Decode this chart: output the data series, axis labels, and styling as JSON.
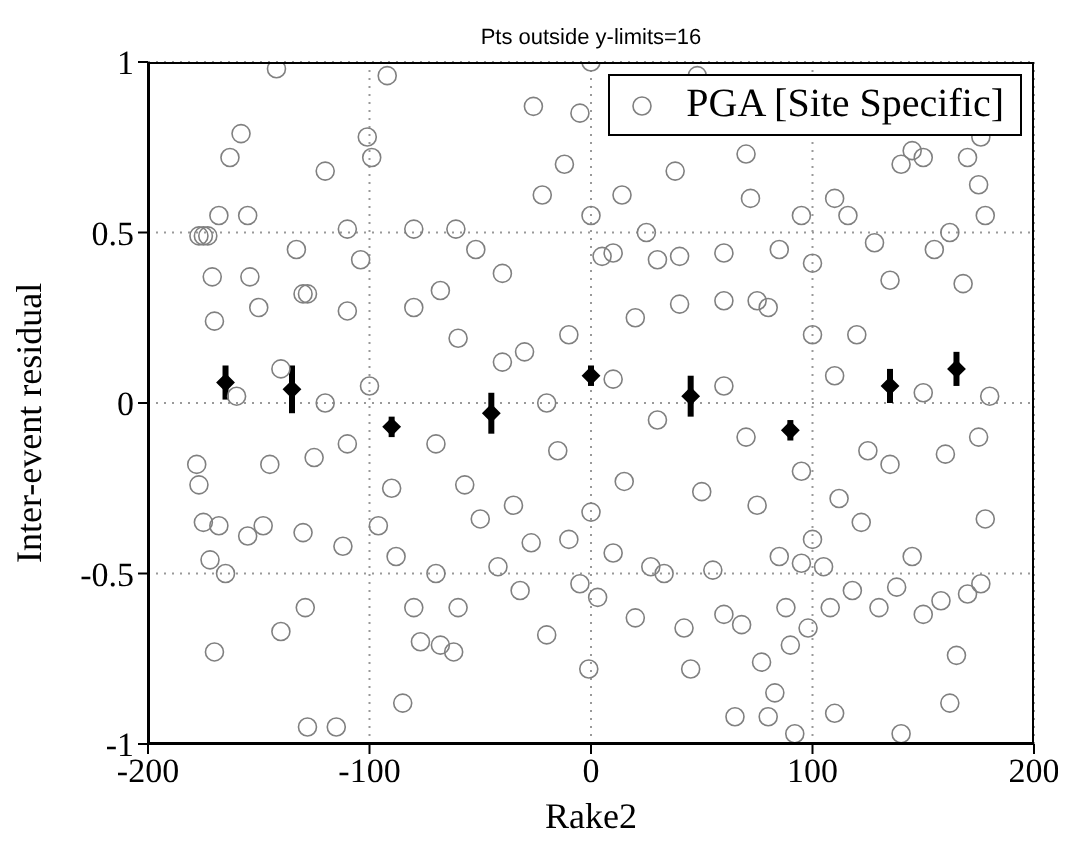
{
  "chart_data": {
    "type": "scatter",
    "title": "Pts outside y-limits=16",
    "xlabel": "Rake2",
    "ylabel": "Inter-event residual",
    "xlim": [
      -200,
      200
    ],
    "xticks": [
      -200,
      -100,
      0,
      100,
      200
    ],
    "ylim": [
      -1,
      1
    ],
    "yticks": [
      -1,
      -0.5,
      0,
      0.5,
      1
    ],
    "grid": true,
    "legend": "top right",
    "series": [
      {
        "name": "PGA [Site Specific]",
        "color": "#808080",
        "marker": "circle",
        "x": [
          -177,
          -175,
          -173,
          -168,
          -171,
          -163,
          -158,
          -155,
          -154,
          -142,
          -133,
          -128,
          -120,
          -110,
          -101,
          -99,
          -92,
          -104,
          -80,
          -68,
          -61,
          -52,
          -40,
          -26,
          -22,
          -12,
          -5,
          0,
          0,
          5,
          10,
          14,
          25,
          30,
          38,
          40,
          48,
          60,
          70,
          72,
          75,
          85,
          95,
          100,
          110,
          116,
          128,
          140,
          145,
          150,
          155,
          162,
          170,
          175,
          178,
          176,
          168,
          135,
          120,
          100,
          80,
          60,
          40,
          20,
          -10,
          -30,
          -60,
          -80,
          -110,
          -130,
          -150,
          -170,
          -178,
          -177,
          -175,
          -172,
          -168,
          -170,
          -165,
          -155,
          -148,
          -145,
          -140,
          -130,
          -129,
          -128,
          -125,
          -115,
          -112,
          -110,
          -96,
          -90,
          -88,
          -85,
          -80,
          -77,
          -70,
          -68,
          -62,
          -60,
          -57,
          -50,
          -42,
          -35,
          -32,
          -27,
          -20,
          -15,
          -10,
          -5,
          -1,
          0,
          3,
          10,
          15,
          20,
          27,
          33,
          42,
          45,
          50,
          55,
          60,
          65,
          68,
          75,
          77,
          80,
          83,
          85,
          88,
          90,
          92,
          95,
          98,
          100,
          105,
          108,
          110,
          112,
          118,
          122,
          130,
          135,
          138,
          140,
          145,
          150,
          158,
          162,
          165,
          170,
          176,
          178,
          175,
          160,
          125,
          95,
          70,
          30,
          -20,
          -70,
          -120,
          -160,
          180,
          150,
          110,
          60,
          10,
          -40,
          -100,
          -140
        ],
        "values": [
          0.49,
          0.49,
          0.49,
          0.55,
          0.37,
          0.72,
          0.79,
          0.55,
          0.37,
          0.98,
          0.45,
          0.32,
          0.68,
          0.51,
          0.78,
          0.72,
          0.96,
          0.42,
          0.51,
          0.33,
          0.51,
          0.45,
          0.38,
          0.87,
          0.61,
          0.7,
          0.85,
          1.0,
          0.55,
          0.43,
          0.44,
          0.61,
          0.5,
          0.42,
          0.68,
          0.43,
          0.96,
          0.44,
          0.73,
          0.6,
          0.3,
          0.45,
          0.55,
          0.41,
          0.6,
          0.55,
          0.47,
          0.7,
          0.74,
          0.72,
          0.45,
          0.5,
          0.72,
          0.64,
          0.55,
          0.78,
          0.35,
          0.36,
          0.2,
          0.2,
          0.28,
          0.3,
          0.29,
          0.25,
          0.2,
          0.15,
          0.19,
          0.28,
          0.27,
          0.32,
          0.28,
          0.24,
          -0.18,
          -0.24,
          -0.35,
          -0.46,
          -0.36,
          -0.73,
          -0.5,
          -0.39,
          -0.36,
          -0.18,
          -0.67,
          -0.38,
          -0.6,
          -0.95,
          -0.16,
          -0.95,
          -0.42,
          -0.12,
          -0.36,
          -0.25,
          -0.45,
          -0.88,
          -0.6,
          -0.7,
          -0.5,
          -0.71,
          -0.73,
          -0.6,
          -0.24,
          -0.34,
          -0.48,
          -0.3,
          -0.55,
          -0.41,
          -0.68,
          -0.14,
          -0.4,
          -0.53,
          -0.78,
          -0.32,
          -0.57,
          -0.44,
          -0.23,
          -0.63,
          -0.48,
          -0.5,
          -0.66,
          -0.78,
          -0.26,
          -0.49,
          -0.62,
          -0.92,
          -0.65,
          -0.3,
          -0.76,
          -0.92,
          -0.85,
          -0.45,
          -0.6,
          -0.71,
          -0.97,
          -0.47,
          -0.66,
          -0.4,
          -0.48,
          -0.6,
          -0.91,
          -0.28,
          -0.55,
          -0.35,
          -0.6,
          -0.18,
          -0.54,
          -0.97,
          -0.45,
          -0.62,
          -0.58,
          -0.88,
          -0.74,
          -0.56,
          -0.53,
          -0.34,
          -0.1,
          -0.15,
          -0.14,
          -0.2,
          -0.1,
          -0.05,
          0.0,
          -0.12,
          0.0,
          0.02,
          0.02,
          0.03,
          0.08,
          0.05,
          0.07,
          0.12,
          0.05,
          0.1
        ]
      },
      {
        "color": "#000000",
        "marker": "diamond",
        "x": [
          -165,
          -135,
          -90,
          -45,
          0,
          45,
          90,
          135,
          165
        ],
        "values": [
          0.06,
          0.04,
          -0.07,
          -0.03,
          0.08,
          0.02,
          -0.08,
          0.05,
          0.1
        ],
        "errors": [
          0.05,
          0.07,
          0.03,
          0.06,
          0.03,
          0.06,
          0.03,
          0.05,
          0.05
        ]
      }
    ]
  }
}
